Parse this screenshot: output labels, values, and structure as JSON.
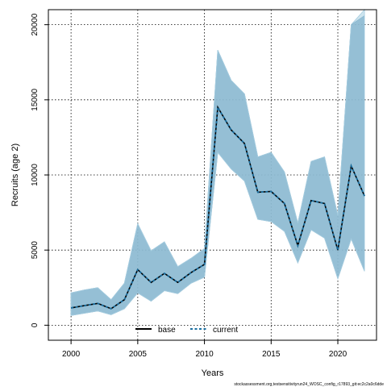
{
  "chart_data": {
    "type": "line",
    "xlabel": "Years",
    "ylabel": "Recruits (age 2)",
    "xlim": [
      1998.3,
      2022.9
    ],
    "ylim": [
      -1000,
      21000
    ],
    "xticks": [
      2000,
      2005,
      2010,
      2015,
      2020
    ],
    "yticks": [
      0,
      5000,
      10000,
      15000,
      20000
    ],
    "grid": true,
    "legend_position": "bottom-center",
    "footnote": "stockassessment.org,testsensitivityrun24_WOSC_config_r17893_git:ec2c2a0c6dde",
    "x": [
      2000,
      2001,
      2002,
      2003,
      2004,
      2005,
      2006,
      2007,
      2008,
      2009,
      2010,
      2011,
      2012,
      2013,
      2014,
      2015,
      2016,
      2017,
      2018,
      2019,
      2020,
      2021,
      2022
    ],
    "series": [
      {
        "name": "base",
        "color": "#000000",
        "style": "solid",
        "values": [
          1150,
          1300,
          1450,
          1100,
          1700,
          3700,
          2850,
          3450,
          2850,
          3500,
          4050,
          14500,
          13000,
          12100,
          8850,
          8900,
          8100,
          5300,
          8300,
          8100,
          5000,
          10600,
          8600
        ],
        "lower": [
          650,
          800,
          950,
          700,
          1100,
          2150,
          1600,
          2300,
          2100,
          2800,
          3200,
          11500,
          10400,
          9600,
          7050,
          6900,
          6250,
          4150,
          6350,
          5800,
          3100,
          5750,
          3600
        ],
        "upper": [
          2150,
          2350,
          2500,
          1700,
          2800,
          6750,
          4950,
          5550,
          3900,
          4450,
          5100,
          18300,
          16300,
          15400,
          11200,
          11500,
          10200,
          6800,
          10900,
          11200,
          7300,
          20000,
          20600
        ],
        "band_color": "#6a9fbd"
      },
      {
        "name": "current",
        "color": "#1a6fa0",
        "style": "dashed",
        "values": [
          1150,
          1300,
          1450,
          1100,
          1700,
          3700,
          2850,
          3450,
          2850,
          3500,
          4050,
          14500,
          13000,
          12100,
          8850,
          8900,
          8100,
          5300,
          8300,
          8100,
          5000,
          10600,
          8600
        ],
        "lower": [
          650,
          800,
          950,
          700,
          1100,
          2150,
          1600,
          2300,
          2100,
          2800,
          3200,
          11500,
          10400,
          9600,
          7050,
          6900,
          6250,
          4150,
          6350,
          5800,
          3100,
          5750,
          3600
        ],
        "upper": [
          2150,
          2350,
          2500,
          1700,
          2800,
          6750,
          4950,
          5550,
          3900,
          4450,
          5100,
          18300,
          16300,
          15400,
          11200,
          11500,
          10200,
          6800,
          10900,
          11200,
          7300,
          20000,
          21000
        ],
        "band_color": "#a6cde0"
      }
    ]
  }
}
